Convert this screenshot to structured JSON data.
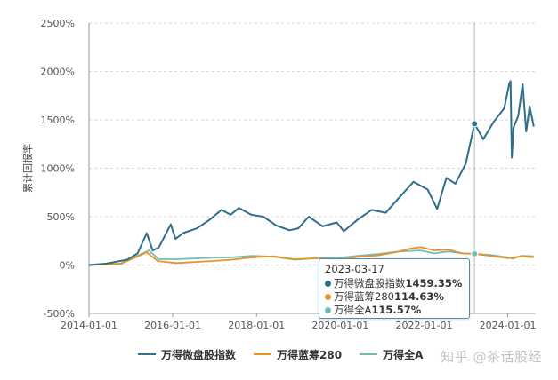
{
  "chart_data": {
    "type": "line",
    "ylabel": "累计回报率",
    "xlabel": "",
    "title": "",
    "ylim": [
      -500,
      2500
    ],
    "yticks": [
      -500,
      0,
      500,
      1000,
      1500,
      2000,
      2500
    ],
    "ytick_labels": [
      "-500%",
      "0%",
      "500%",
      "1000%",
      "1500%",
      "2000%",
      "2500%"
    ],
    "xlim": [
      "2014-01-01",
      "2024-09-01"
    ],
    "xtick_labels": [
      "2014-01-01",
      "2016-01-01",
      "2018-01-01",
      "2020-01-01",
      "2022-01-01",
      "2024-01-01"
    ],
    "grid": "horizontal-dashed",
    "legend_position": "bottom",
    "series": [
      {
        "name": "万得微盘股指数",
        "color": "#2f6f8c",
        "points": [
          [
            "2014-01-01",
            0
          ],
          [
            "2014-06-01",
            15
          ],
          [
            "2014-12-01",
            55
          ],
          [
            "2015-03-01",
            120
          ],
          [
            "2015-05-20",
            330
          ],
          [
            "2015-07-10",
            150
          ],
          [
            "2015-09-01",
            180
          ],
          [
            "2015-12-15",
            420
          ],
          [
            "2016-01-25",
            270
          ],
          [
            "2016-04-01",
            330
          ],
          [
            "2016-08-01",
            380
          ],
          [
            "2016-11-20",
            470
          ],
          [
            "2017-03-01",
            570
          ],
          [
            "2017-05-20",
            520
          ],
          [
            "2017-08-01",
            590
          ],
          [
            "2017-11-15",
            520
          ],
          [
            "2018-03-01",
            500
          ],
          [
            "2018-06-20",
            410
          ],
          [
            "2018-10-15",
            360
          ],
          [
            "2019-01-01",
            380
          ],
          [
            "2019-04-01",
            500
          ],
          [
            "2019-08-01",
            400
          ],
          [
            "2019-12-01",
            440
          ],
          [
            "2020-02-01",
            350
          ],
          [
            "2020-06-01",
            470
          ],
          [
            "2020-10-01",
            570
          ],
          [
            "2021-02-01",
            540
          ],
          [
            "2021-06-01",
            700
          ],
          [
            "2021-10-01",
            860
          ],
          [
            "2022-02-01",
            780
          ],
          [
            "2022-04-25",
            580
          ],
          [
            "2022-07-15",
            900
          ],
          [
            "2022-10-01",
            840
          ],
          [
            "2023-01-01",
            1050
          ],
          [
            "2023-03-17",
            1459.35
          ],
          [
            "2023-06-01",
            1300
          ],
          [
            "2023-09-01",
            1480
          ],
          [
            "2023-12-01",
            1620
          ],
          [
            "2024-01-15",
            1880
          ],
          [
            "2024-01-25",
            1900
          ],
          [
            "2024-02-05",
            1110
          ],
          [
            "2024-02-20",
            1420
          ],
          [
            "2024-04-01",
            1540
          ],
          [
            "2024-05-10",
            1870
          ],
          [
            "2024-06-10",
            1380
          ],
          [
            "2024-07-10",
            1640
          ],
          [
            "2024-08-15",
            1430
          ]
        ]
      },
      {
        "name": "万得蓝筹280",
        "color": "#e8922a",
        "points": [
          [
            "2014-01-01",
            0
          ],
          [
            "2014-10-01",
            10
          ],
          [
            "2015-05-20",
            130
          ],
          [
            "2015-08-25",
            40
          ],
          [
            "2016-02-01",
            20
          ],
          [
            "2016-12-01",
            40
          ],
          [
            "2017-06-01",
            55
          ],
          [
            "2017-12-01",
            80
          ],
          [
            "2018-06-01",
            90
          ],
          [
            "2018-12-01",
            60
          ],
          [
            "2019-06-01",
            70
          ],
          [
            "2020-01-01",
            55
          ],
          [
            "2020-06-01",
            85
          ],
          [
            "2020-12-01",
            100
          ],
          [
            "2021-06-01",
            140
          ],
          [
            "2021-09-01",
            170
          ],
          [
            "2021-12-01",
            185
          ],
          [
            "2022-04-01",
            150
          ],
          [
            "2022-08-01",
            160
          ],
          [
            "2022-12-01",
            120
          ],
          [
            "2023-03-17",
            114.63
          ],
          [
            "2023-08-01",
            95
          ],
          [
            "2024-01-01",
            70
          ],
          [
            "2024-05-01",
            90
          ],
          [
            "2024-08-15",
            80
          ]
        ]
      },
      {
        "name": "万得全A",
        "color": "#74bdb4",
        "points": [
          [
            "2014-01-01",
            0
          ],
          [
            "2014-10-01",
            15
          ],
          [
            "2015-06-10",
            150
          ],
          [
            "2015-09-01",
            60
          ],
          [
            "2016-02-01",
            60
          ],
          [
            "2016-12-01",
            75
          ],
          [
            "2017-06-01",
            80
          ],
          [
            "2017-12-01",
            95
          ],
          [
            "2018-06-01",
            85
          ],
          [
            "2018-12-01",
            55
          ],
          [
            "2019-06-01",
            70
          ],
          [
            "2020-01-01",
            75
          ],
          [
            "2020-06-01",
            95
          ],
          [
            "2020-12-01",
            115
          ],
          [
            "2021-06-01",
            140
          ],
          [
            "2021-12-01",
            150
          ],
          [
            "2022-04-01",
            120
          ],
          [
            "2022-08-01",
            140
          ],
          [
            "2022-12-01",
            120
          ],
          [
            "2023-03-17",
            115.57
          ],
          [
            "2023-08-01",
            105
          ],
          [
            "2024-01-01",
            80
          ],
          [
            "2024-02-10",
            65
          ],
          [
            "2024-05-01",
            95
          ],
          [
            "2024-08-15",
            90
          ]
        ]
      }
    ],
    "tooltip": {
      "date": "2023-03-17",
      "rows": [
        {
          "name": "万得微盘股指数",
          "value": "1459.35%",
          "color": "#2f6f8c"
        },
        {
          "name": "万得蓝筹280",
          "value": "114.63%",
          "color": "#e8922a"
        },
        {
          "name": "万得全A",
          "value": "115.57%",
          "color": "#74bdb4"
        }
      ]
    }
  },
  "legend": {
    "items": [
      {
        "label": "万得微盘股指数",
        "color": "#2f6f8c"
      },
      {
        "label": "万得蓝筹280",
        "color": "#e8922a"
      },
      {
        "label": "万得全A",
        "color": "#74bdb4"
      }
    ]
  },
  "watermark": "知乎 @茶话股经"
}
